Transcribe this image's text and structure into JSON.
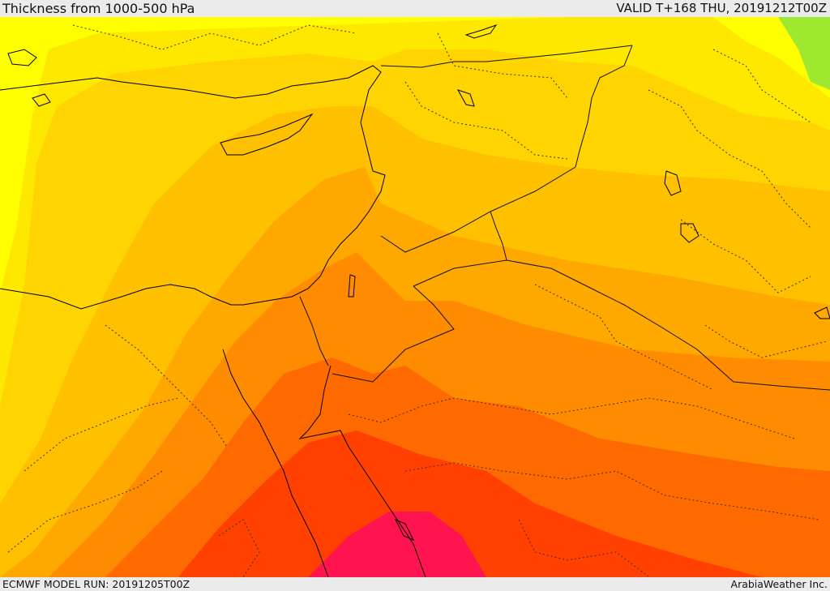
{
  "header": {
    "title": "Thickness from 1000-500 hPa",
    "valid": "VALID T+168 THU, 20191212T00Z"
  },
  "footer": {
    "model_run": "ECMWF MODEL RUN: 20191205T00Z",
    "credit": "ArabiaWeather Inc."
  },
  "map": {
    "field": "1000-500 hPa thickness",
    "colors": {
      "yellow_green": "#9ee830",
      "bright_yellow": "#ffff00",
      "yellow": "#ffe800",
      "gold": "#ffd400",
      "light_orange": "#ffc000",
      "orange": "#ffa800",
      "dark_orange": "#ff8c00",
      "red_orange": "#ff6a00",
      "red": "#ff4000",
      "crimson": "#ff1450",
      "coastline": "#000000",
      "border": "#222222"
    }
  }
}
